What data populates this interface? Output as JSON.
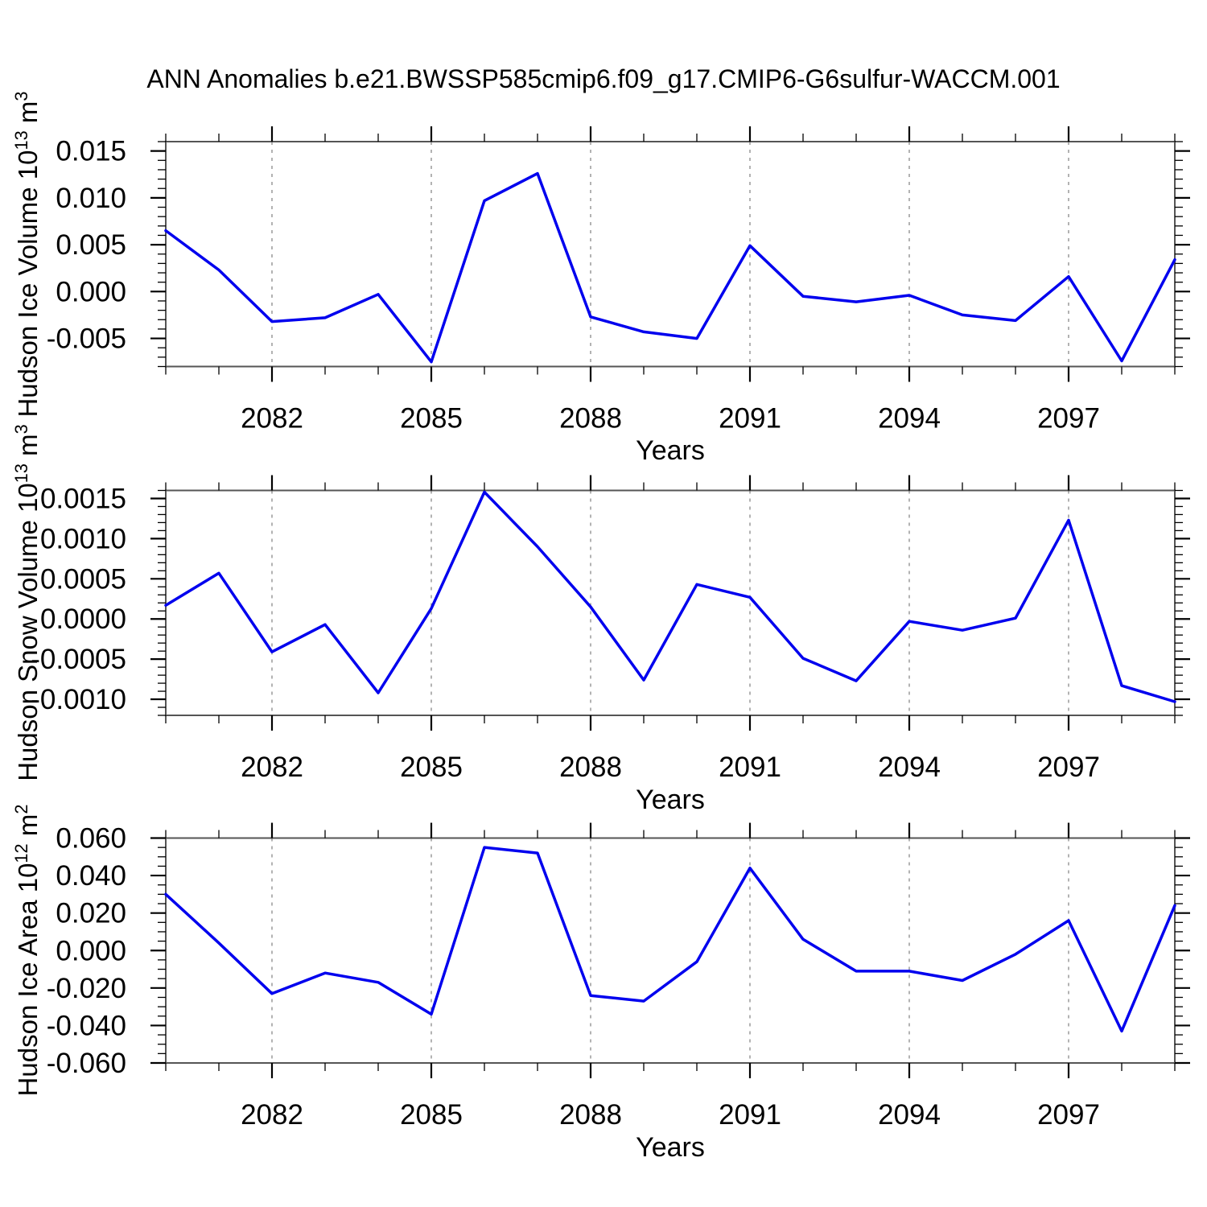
{
  "title": "ANN Anomalies b.e21.BWSSP585cmip6.f09_g17.CMIP6-G6sulfur-WACCM.001",
  "colors": {
    "line": "#0000ee",
    "grid": "#808080",
    "box": "#555555",
    "tick": "#000000",
    "text": "#000000",
    "background": "#ffffff"
  },
  "chart_data": [
    {
      "type": "line",
      "ylabel_plain": "Hudson Ice Volume 10^13 m^3",
      "ylabel_runs": [
        {
          "t": "Hudson Ice Volume 10"
        },
        {
          "t": "13",
          "sup": true
        },
        {
          "t": " m"
        },
        {
          "t": "3",
          "sup": true
        }
      ],
      "xlabel": "Years",
      "x": [
        2080,
        2081,
        2082,
        2083,
        2084,
        2085,
        2086,
        2087,
        2088,
        2089,
        2090,
        2091,
        2092,
        2093,
        2094,
        2095,
        2096,
        2097,
        2098,
        2099
      ],
      "values": [
        0.0065,
        0.0023,
        -0.0032,
        -0.0028,
        -0.0003,
        -0.0075,
        0.0097,
        0.0126,
        -0.0027,
        -0.0043,
        -0.005,
        0.0049,
        -0.0005,
        -0.0011,
        -0.0004,
        -0.0025,
        -0.0031,
        0.0016,
        -0.0074,
        0.0034
      ],
      "xlim": [
        2080,
        2099
      ],
      "xticks": [
        2082,
        2085,
        2088,
        2091,
        2094,
        2097
      ],
      "xminor_step": 1,
      "ylim": [
        -0.008,
        0.016
      ],
      "yticks": [
        -0.005,
        0.0,
        0.005,
        0.01,
        0.015
      ],
      "yminor_step": 0.001,
      "ytick_decimals": 3,
      "grid": "vertical-dashed-at-major-xticks",
      "legend": "none"
    },
    {
      "type": "line",
      "ylabel_plain": "Hudson Snow Volume 10^13 m^3",
      "ylabel_runs": [
        {
          "t": "Hudson Snow Volume 10"
        },
        {
          "t": "13",
          "sup": true
        },
        {
          "t": " m"
        },
        {
          "t": "3",
          "sup": true
        }
      ],
      "xlabel": "Years",
      "x": [
        2080,
        2081,
        2082,
        2083,
        2084,
        2085,
        2086,
        2087,
        2088,
        2089,
        2090,
        2091,
        2092,
        2093,
        2094,
        2095,
        2096,
        2097,
        2098,
        2099
      ],
      "values": [
        0.00017,
        0.00057,
        -0.00041,
        -7e-05,
        -0.00092,
        0.00013,
        0.00158,
        0.0009,
        0.00015,
        -0.00076,
        0.00043,
        0.00027,
        -0.00049,
        -0.00077,
        -3e-05,
        -0.00014,
        1e-05,
        0.00123,
        -0.00083,
        -0.00103
      ],
      "xlim": [
        2080,
        2099
      ],
      "xticks": [
        2082,
        2085,
        2088,
        2091,
        2094,
        2097
      ],
      "xminor_step": 1,
      "ylim": [
        -0.0012,
        0.0016
      ],
      "yticks": [
        -0.001,
        -0.0005,
        0.0,
        0.0005,
        0.001,
        0.0015
      ],
      "yminor_step": 0.0001,
      "ytick_decimals": 4,
      "grid": "vertical-dashed-at-major-xticks",
      "legend": "none"
    },
    {
      "type": "line",
      "ylabel_plain": "Hudson Ice Area 10^12 m^2",
      "ylabel_runs": [
        {
          "t": "Hudson Ice Area 10"
        },
        {
          "t": "12",
          "sup": true
        },
        {
          "t": " m"
        },
        {
          "t": "2",
          "sup": true
        }
      ],
      "xlabel": "Years",
      "x": [
        2080,
        2081,
        2082,
        2083,
        2084,
        2085,
        2086,
        2087,
        2088,
        2089,
        2090,
        2091,
        2092,
        2093,
        2094,
        2095,
        2096,
        2097,
        2098,
        2099
      ],
      "values": [
        0.03,
        0.004,
        -0.023,
        -0.012,
        -0.017,
        -0.034,
        0.055,
        0.052,
        -0.024,
        -0.027,
        -0.006,
        0.044,
        0.006,
        -0.011,
        -0.011,
        -0.016,
        -0.002,
        0.016,
        -0.043,
        0.024
      ],
      "xlim": [
        2080,
        2099
      ],
      "xticks": [
        2082,
        2085,
        2088,
        2091,
        2094,
        2097
      ],
      "xminor_step": 1,
      "ylim": [
        -0.06,
        0.06
      ],
      "yticks": [
        -0.06,
        -0.04,
        -0.02,
        0.0,
        0.02,
        0.04,
        0.06
      ],
      "yminor_step": 0.005,
      "ytick_decimals": 3,
      "grid": "vertical-dashed-at-major-xticks",
      "legend": "none"
    }
  ]
}
